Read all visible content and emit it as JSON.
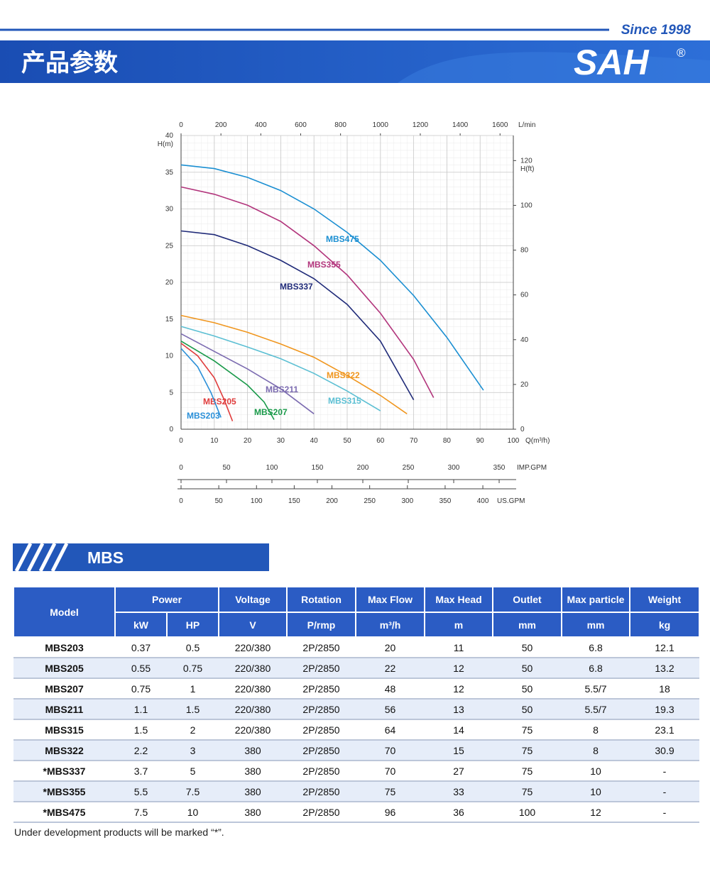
{
  "header": {
    "since": "Since 1998",
    "title": "产品参数",
    "brand": "SAH",
    "registered": "®"
  },
  "chart_data": {
    "type": "line",
    "xlabel": "Q(m³/h)",
    "ylabel": "H(m)",
    "y2label": "H(ft)",
    "xlim": [
      0,
      100
    ],
    "xticks": [
      0,
      10,
      20,
      30,
      40,
      50,
      60,
      70,
      80,
      90,
      100
    ],
    "ylim": [
      0,
      40
    ],
    "yticks": [
      0,
      5,
      10,
      15,
      20,
      25,
      30,
      35,
      40
    ],
    "y2lim": [
      0,
      131.2
    ],
    "y2ticks": [
      0,
      20,
      40,
      60,
      80,
      100,
      120
    ],
    "grid": true,
    "extra_x_axes": [
      {
        "label": "L/min",
        "position": "top",
        "lim": [
          0,
          1666.7
        ],
        "ticks": [
          0,
          200,
          400,
          600,
          800,
          1000,
          1200,
          1400,
          1600
        ]
      },
      {
        "label": "IMP.GPM",
        "position": "bottom",
        "lim": [
          0,
          365.6
        ],
        "ticks": [
          0,
          50,
          100,
          150,
          200,
          250,
          300,
          350
        ]
      },
      {
        "label": "US.GPM",
        "position": "bottom",
        "lim": [
          0,
          440.4
        ],
        "ticks": [
          0,
          50,
          100,
          150,
          200,
          250,
          300,
          350,
          400
        ]
      }
    ],
    "series": [
      {
        "name": "MBS475",
        "color": "#1b8fd2",
        "x": [
          0,
          10,
          20,
          30,
          40,
          50,
          60,
          70,
          80,
          91
        ],
        "values": [
          36,
          35.5,
          34.3,
          32.5,
          30,
          26.8,
          23,
          18.2,
          12.5,
          5.3
        ]
      },
      {
        "name": "MBS355",
        "color": "#b2357c",
        "x": [
          0,
          10,
          20,
          30,
          40,
          50,
          60,
          70,
          76
        ],
        "values": [
          33,
          32,
          30.5,
          28.3,
          25,
          21,
          15.8,
          9.5,
          4.3
        ]
      },
      {
        "name": "MBS337",
        "color": "#1f2a78",
        "x": [
          0,
          10,
          20,
          30,
          40,
          50,
          60,
          70
        ],
        "values": [
          27,
          26.5,
          25,
          23,
          20.5,
          17,
          12,
          4
        ]
      },
      {
        "name": "MBS322",
        "color": "#f0961e",
        "x": [
          0,
          10,
          20,
          30,
          40,
          50,
          60,
          68
        ],
        "values": [
          15.5,
          14.5,
          13.2,
          11.6,
          9.8,
          7.3,
          4.6,
          2.1
        ]
      },
      {
        "name": "MBS315",
        "color": "#5bbfd3",
        "x": [
          0,
          10,
          20,
          30,
          40,
          50,
          60
        ],
        "values": [
          14,
          12.7,
          11.2,
          9.6,
          7.6,
          5.2,
          2.5
        ]
      },
      {
        "name": "MBS211",
        "color": "#7b6bb0",
        "x": [
          0,
          10,
          20,
          30,
          40
        ],
        "values": [
          13,
          10.6,
          8.2,
          5.5,
          2.1
        ]
      },
      {
        "name": "MBS207",
        "color": "#1a9a4a",
        "x": [
          0,
          10,
          20,
          25,
          28
        ],
        "values": [
          12,
          9.3,
          6,
          3.7,
          1.3
        ]
      },
      {
        "name": "MBS205",
        "color": "#e03c3c",
        "x": [
          0,
          5,
          10,
          13,
          15.5
        ],
        "values": [
          11.7,
          10,
          7,
          4,
          1.1
        ]
      },
      {
        "name": "MBS203",
        "color": "#2a8fd8",
        "x": [
          0,
          5,
          9,
          12
        ],
        "values": [
          11,
          8.5,
          5,
          1.6
        ]
      }
    ]
  },
  "section_title": "MBS",
  "table": {
    "columns": [
      {
        "title": "Model",
        "units": []
      },
      {
        "title": "Power",
        "units": [
          "kW",
          "HP"
        ]
      },
      {
        "title": "Voltage",
        "units": [
          "V"
        ]
      },
      {
        "title": "Rotation",
        "units": [
          "P/rmp"
        ]
      },
      {
        "title": "Max Flow",
        "units": [
          "m³/h"
        ]
      },
      {
        "title": "Max Head",
        "units": [
          "m"
        ]
      },
      {
        "title": "Outlet",
        "units": [
          "mm"
        ]
      },
      {
        "title": "Max particle",
        "units": [
          "mm"
        ]
      },
      {
        "title": "Weight",
        "units": [
          "kg"
        ]
      }
    ],
    "rows": [
      [
        "MBS203",
        "0.37",
        "0.5",
        "220/380",
        "2P/2850",
        "20",
        "11",
        "50",
        "6.8",
        "12.1"
      ],
      [
        "MBS205",
        "0.55",
        "0.75",
        "220/380",
        "2P/2850",
        "22",
        "12",
        "50",
        "6.8",
        "13.2"
      ],
      [
        "MBS207",
        "0.75",
        "1",
        "220/380",
        "2P/2850",
        "48",
        "12",
        "50",
        "5.5/7",
        "18"
      ],
      [
        "MBS211",
        "1.1",
        "1.5",
        "220/380",
        "2P/2850",
        "56",
        "13",
        "50",
        "5.5/7",
        "19.3"
      ],
      [
        "MBS315",
        "1.5",
        "2",
        "220/380",
        "2P/2850",
        "64",
        "14",
        "75",
        "8",
        "23.1"
      ],
      [
        "MBS322",
        "2.2",
        "3",
        "380",
        "2P/2850",
        "70",
        "15",
        "75",
        "8",
        "30.9"
      ],
      [
        "*MBS337",
        "3.7",
        "5",
        "380",
        "2P/2850",
        "70",
        "27",
        "75",
        "10",
        "-"
      ],
      [
        "*MBS355",
        "5.5",
        "7.5",
        "380",
        "2P/2850",
        "75",
        "33",
        "75",
        "10",
        "-"
      ],
      [
        "*MBS475",
        "7.5",
        "10",
        "380",
        "2P/2850",
        "96",
        "36",
        "100",
        "12",
        "-"
      ]
    ]
  },
  "note": "Under development products will be marked “*”."
}
